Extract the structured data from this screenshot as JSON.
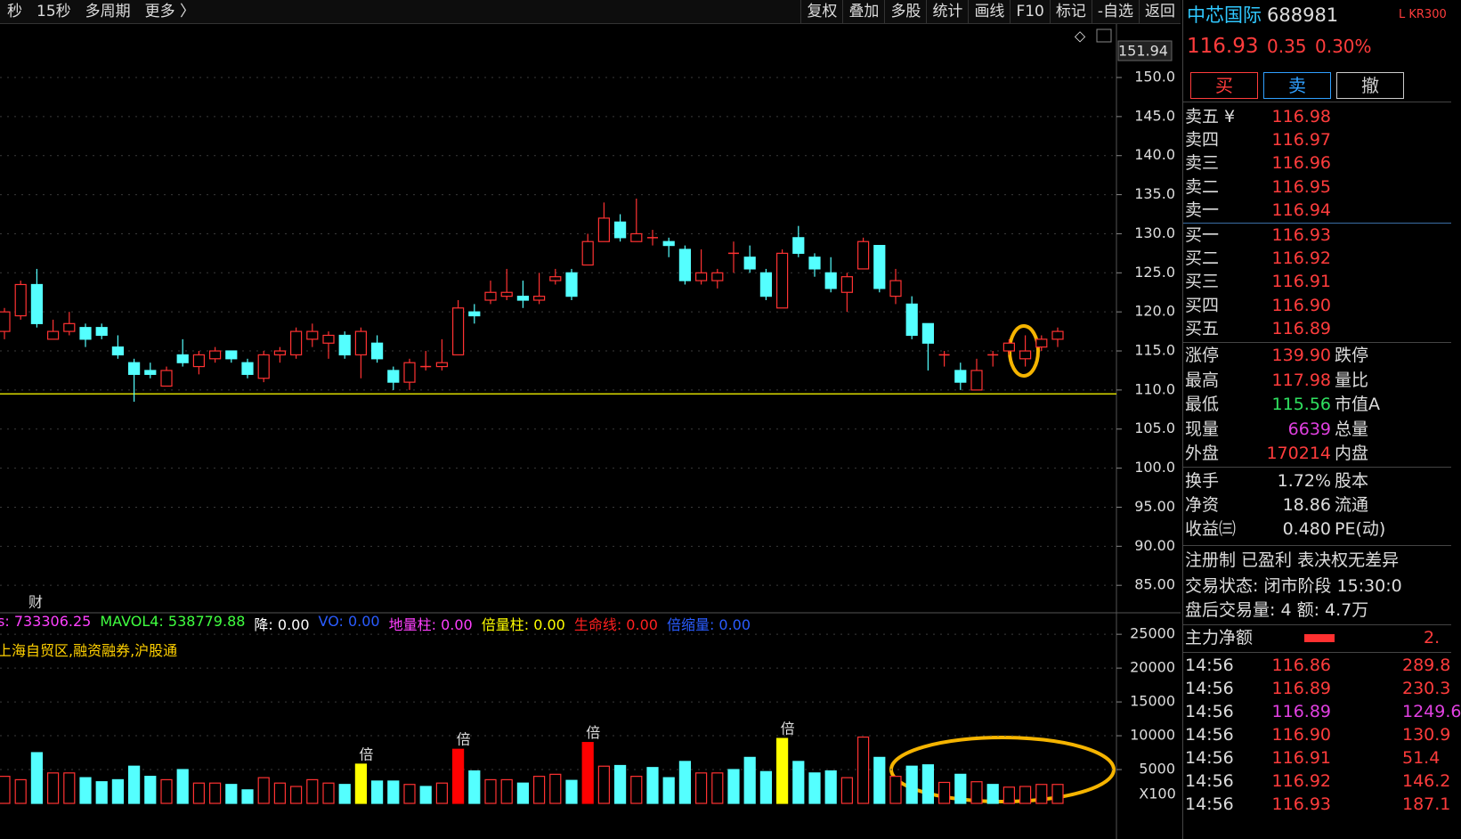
{
  "toolbar": {
    "left": [
      "秒",
      "15秒",
      "多周期",
      "更多 〉"
    ],
    "right": [
      "复权",
      "叠加",
      "多股",
      "统计",
      "画线",
      "F10",
      "标记",
      "-自选",
      "返回"
    ]
  },
  "chart_data": [
    {
      "type": "candlestick",
      "up_color": "#ff3232",
      "down_color": "#54ffff",
      "axis_max_label": "151.94",
      "marker": "财",
      "ylim": [
        81.6,
        156.5
      ],
      "yticks": [
        {
          "value": 150,
          "label": "150.0"
        },
        {
          "value": 145,
          "label": "145.0"
        },
        {
          "value": 140,
          "label": "140.0"
        },
        {
          "value": 135,
          "label": "135.0"
        },
        {
          "value": 130,
          "label": "130.0"
        },
        {
          "value": 125,
          "label": "125.0"
        },
        {
          "value": 120,
          "label": "120.0"
        },
        {
          "value": 115,
          "label": "115.0"
        },
        {
          "value": 110,
          "label": "110.0"
        },
        {
          "value": 105,
          "label": "105.0"
        },
        {
          "value": 100,
          "label": "100.0"
        },
        {
          "value": 95,
          "label": "95.00"
        },
        {
          "value": 90,
          "label": "90.00"
        },
        {
          "value": 85,
          "label": "85.00"
        }
      ],
      "grid": true,
      "reference_line": 109.5,
      "open": [
        117.5,
        119.5,
        123.5,
        116.5,
        117.5,
        118,
        118,
        115.5,
        113.5,
        112.5,
        110.5,
        114.5,
        113,
        114,
        115,
        113.5,
        111.5,
        114.5,
        114.5,
        116.5,
        116,
        117,
        114.5,
        116,
        112.5,
        111,
        113,
        113,
        114.5,
        120,
        121.5,
        122,
        122,
        121.5,
        124,
        125,
        126,
        129,
        131.5,
        129,
        129.5,
        129,
        128,
        124,
        124,
        127.5,
        127,
        125,
        120.5,
        129.5,
        127,
        125,
        122.5,
        125.5,
        128.5,
        122,
        121,
        118.5,
        114.5,
        112.5,
        110,
        114.5,
        115,
        114,
        115.5,
        116.5
      ],
      "high": [
        120.5,
        124,
        125.5,
        119,
        120,
        118.5,
        118.5,
        117,
        114,
        113.5,
        113,
        116.5,
        115,
        115.5,
        115,
        114,
        115,
        115.5,
        118,
        118.5,
        117.5,
        117.5,
        118,
        117,
        113,
        114,
        115,
        116.5,
        121.5,
        121,
        124,
        125.5,
        124,
        125,
        125.5,
        125.5,
        130,
        134,
        132.5,
        134.5,
        130.5,
        129.5,
        128.5,
        128,
        125.5,
        129,
        128.5,
        125.5,
        128,
        131,
        127.5,
        127,
        125,
        129.5,
        128.5,
        125.5,
        122,
        118.5,
        115,
        113.5,
        114,
        115,
        116.5,
        117,
        117,
        118
      ],
      "low": [
        116.5,
        119,
        118,
        116.5,
        117,
        115.5,
        116.5,
        114,
        108.5,
        111.5,
        110.5,
        113,
        112,
        113.5,
        113.5,
        111.5,
        111,
        113.5,
        114,
        115.5,
        114,
        114,
        111.5,
        113.5,
        110,
        110,
        112.5,
        112.5,
        114.5,
        118.5,
        121,
        121.5,
        120.5,
        121,
        123.5,
        121.5,
        126,
        129,
        129,
        129,
        128.5,
        127,
        123.5,
        123.5,
        123,
        125,
        125,
        121.5,
        120.5,
        127,
        124.5,
        122.5,
        120,
        125.5,
        122.5,
        121,
        116.5,
        112.5,
        113,
        110,
        110,
        113,
        114.5,
        113,
        115,
        115.5
      ],
      "close": [
        120,
        123.5,
        118.5,
        117.5,
        118.5,
        116.5,
        117,
        114.5,
        112,
        112,
        112.5,
        113.5,
        114.5,
        115,
        114,
        112,
        114.5,
        115,
        117.5,
        117.5,
        117,
        114.5,
        117.5,
        114,
        111,
        113.5,
        113,
        113.5,
        120.5,
        119.5,
        122.5,
        122.5,
        121.5,
        122,
        124.5,
        122,
        129,
        132,
        129.5,
        130,
        129.5,
        128.5,
        124,
        125,
        125,
        127.5,
        125.5,
        122,
        127.5,
        127.5,
        125.5,
        123,
        124.5,
        129,
        123,
        124,
        117,
        116,
        114.5,
        111,
        112.5,
        114.5,
        116,
        115,
        116.5,
        117.5
      ]
    },
    {
      "type": "bar",
      "x_unit": "X100",
      "ylim": [
        0,
        26600
      ],
      "yticks": [
        25000,
        20000,
        15000,
        10000,
        5000
      ],
      "grid": true,
      "legend": [
        "s: 733306.25",
        "MAVOL4: 538779.88",
        "降: 0.00",
        "VO: 0.00",
        "地量柱: 0.00",
        "倍量柱: 0.00",
        "生命线: 0.00",
        "倍缩量: 0.00"
      ],
      "legend_colors": [
        "#ff40ff",
        "#40ff40",
        "#ffffff",
        "#2a5cff",
        "#ff40ff",
        "#ffff00",
        "#ff2020",
        "#2a5cff"
      ],
      "tags": "上海自贸区,融资融券,沪股通",
      "values": [
        4000,
        3500,
        7500,
        4500,
        4500,
        3800,
        3200,
        3500,
        5500,
        4000,
        3500,
        5000,
        3000,
        3000,
        2800,
        2000,
        3800,
        3000,
        2500,
        3500,
        3000,
        2800,
        5800,
        3300,
        3300,
        2800,
        2500,
        3000,
        8000,
        4800,
        3500,
        3500,
        3000,
        4000,
        4300,
        3400,
        9000,
        5500,
        5600,
        4000,
        5300,
        3800,
        6200,
        4500,
        4500,
        5000,
        6800,
        4700,
        9600,
        6200,
        4500,
        4800,
        3800,
        9800,
        6800,
        4000,
        5500,
        5700,
        3100,
        4300,
        3200,
        2800,
        2400,
        2500,
        2800,
        2800
      ],
      "colors": [
        "#ff3232",
        "#ff3232",
        "#54ffff",
        "#ff3232",
        "#ff3232",
        "#54ffff",
        "#54ffff",
        "#54ffff",
        "#54ffff",
        "#54ffff",
        "#ff3232",
        "#54ffff",
        "#ff3232",
        "#ff3232",
        "#54ffff",
        "#54ffff",
        "#ff3232",
        "#ff3232",
        "#ff3232",
        "#ff3232",
        "#ff3232",
        "#54ffff",
        "#ffff00",
        "#54ffff",
        "#54ffff",
        "#ff3232",
        "#54ffff",
        "#ff3232",
        "#ff0000",
        "#54ffff",
        "#ff3232",
        "#ff3232",
        "#54ffff",
        "#ff3232",
        "#ff3232",
        "#54ffff",
        "#ff0000",
        "#ff3232",
        "#54ffff",
        "#ff3232",
        "#54ffff",
        "#54ffff",
        "#54ffff",
        "#ff3232",
        "#ff3232",
        "#54ffff",
        "#54ffff",
        "#54ffff",
        "#ffff00",
        "#54ffff",
        "#54ffff",
        "#54ffff",
        "#ff3232",
        "#ff3232",
        "#54ffff",
        "#ff3232",
        "#54ffff",
        "#54ffff",
        "#ff3232",
        "#54ffff",
        "#ff3232",
        "#54ffff",
        "#ff3232",
        "#ff3232",
        "#ff3232",
        "#ff3232"
      ],
      "value_labels": [
        null,
        null,
        null,
        null,
        null,
        null,
        null,
        null,
        null,
        null,
        null,
        null,
        null,
        null,
        null,
        null,
        null,
        null,
        null,
        null,
        null,
        null,
        "倍",
        null,
        null,
        null,
        null,
        null,
        "倍",
        null,
        null,
        null,
        null,
        null,
        null,
        null,
        "倍",
        null,
        null,
        null,
        null,
        null,
        null,
        null,
        null,
        null,
        null,
        null,
        "倍",
        null,
        null,
        null,
        null,
        null,
        null,
        null,
        null,
        null,
        null,
        null,
        null,
        null,
        null,
        null,
        null,
        null
      ]
    }
  ],
  "quote": {
    "name": "中芯国际",
    "code": "688981",
    "tag": "L KR300",
    "price": "116.93",
    "change": "0.35",
    "change_pct": "0.30%",
    "buttons": [
      "买",
      "卖",
      "撤"
    ],
    "asks": [
      {
        "label": "卖五 ¥",
        "price": "116.98"
      },
      {
        "label": "卖四",
        "price": "116.97"
      },
      {
        "label": "卖三",
        "price": "116.96"
      },
      {
        "label": "卖二",
        "price": "116.95"
      },
      {
        "label": "卖一",
        "price": "116.94"
      }
    ],
    "bids": [
      {
        "label": "买一",
        "price": "116.93"
      },
      {
        "label": "买二",
        "price": "116.92"
      },
      {
        "label": "买三",
        "price": "116.91"
      },
      {
        "label": "买四",
        "price": "116.90"
      },
      {
        "label": "买五",
        "price": "116.89"
      }
    ],
    "stats": [
      {
        "label": "涨停",
        "value": "139.90",
        "color": "#ff3c3c",
        "label2": "跌停"
      },
      {
        "label": "最高",
        "value": "117.98",
        "color": "#ff3c3c",
        "label2": "量比"
      },
      {
        "label": "最低",
        "value": "115.56",
        "color": "#30e060",
        "label2": "市值A"
      },
      {
        "label": "现量",
        "value": "6639",
        "color": "#e040e0",
        "label2": "总量"
      },
      {
        "label": "外盘",
        "value": "170214",
        "color": "#ff3c3c",
        "label2": "内盘"
      }
    ],
    "fund": [
      {
        "label": "换手",
        "value": "1.72%",
        "label2": "股本"
      },
      {
        "label": "净资",
        "value": "18.86",
        "label2": "流通"
      },
      {
        "label": "收益㈢",
        "value": "0.480",
        "label2": "PE(动)"
      }
    ],
    "tags": "注册制 已盈利 表决权无差异",
    "status": "交易状态: 闭市阶段 15:30:0",
    "after_hours": "盘后交易量: 4  额: 4.7万",
    "flow": {
      "label": "主力净额",
      "value": "2."
    },
    "trades": [
      {
        "time": "14:56",
        "price": "116.86",
        "volume": "289.8",
        "color": "#ff3c3c"
      },
      {
        "time": "14:56",
        "price": "116.89",
        "volume": "230.3",
        "color": "#ff3c3c"
      },
      {
        "time": "14:56",
        "price": "116.89",
        "volume": "1249.6",
        "color": "#e040e0"
      },
      {
        "time": "14:56",
        "price": "116.90",
        "volume": "130.9",
        "color": "#ff3c3c"
      },
      {
        "time": "14:56",
        "price": "116.91",
        "volume": "51.4",
        "color": "#ff3c3c"
      },
      {
        "time": "14:56",
        "price": "116.92",
        "volume": "146.2",
        "color": "#ff3c3c"
      },
      {
        "time": "14:56",
        "price": "116.93",
        "volume": "187.1",
        "color": "#ff3c3c"
      }
    ]
  }
}
